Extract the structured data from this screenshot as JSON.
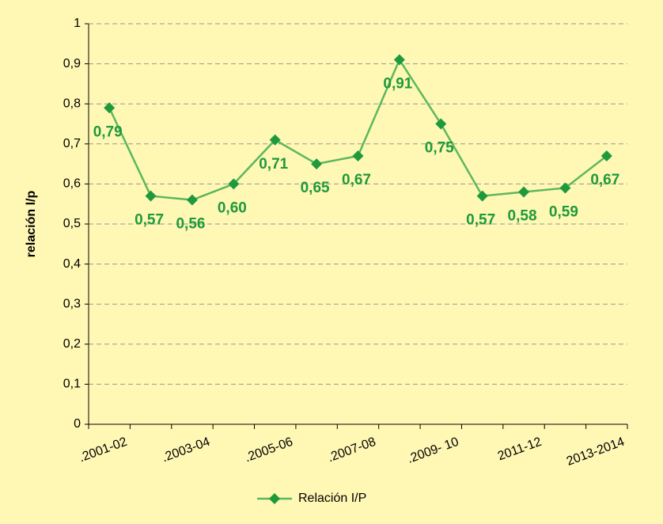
{
  "chart_data": {
    "type": "line",
    "y_label": "relación l/p",
    "categories": [
      ".2001-02",
      null,
      ".2003-04",
      null,
      ".2005-06",
      null,
      ".2007-08",
      null,
      ".2009- 10",
      null,
      "2011-12",
      null,
      "2013-2014"
    ],
    "series": [
      {
        "name": "Relación I/P",
        "color": "#5cb85c",
        "marker_color": "#1e9a3c",
        "values": [
          0.79,
          0.57,
          0.56,
          0.6,
          0.71,
          0.65,
          0.67,
          0.91,
          0.75,
          0.57,
          0.58,
          0.59,
          0.67
        ],
        "value_labels": [
          "0,79",
          "0,57",
          "0,56",
          "0,60",
          "0,71",
          "0,65",
          "0,67",
          "0,91",
          "0,75",
          "0,57",
          "0,58",
          "0,59",
          "0,67"
        ]
      }
    ],
    "ylim": [
      0,
      1
    ],
    "yticks": [
      0,
      {
        "value": 0.1,
        "label": "0,1"
      },
      {
        "value": 0.2,
        "label": "0,2"
      },
      {
        "value": 0.3,
        "label": "0,3"
      },
      {
        "value": 0.4,
        "label": "0,4"
      },
      {
        "value": 0.5,
        "label": "0,5"
      },
      {
        "value": 0.6,
        "label": "0,6"
      },
      {
        "value": 0.7,
        "label": "0,7"
      },
      {
        "value": 0.8,
        "label": "0,8"
      },
      {
        "value": 0.9,
        "label": "0,9"
      },
      1
    ],
    "grid": true,
    "legend": "bottom"
  }
}
